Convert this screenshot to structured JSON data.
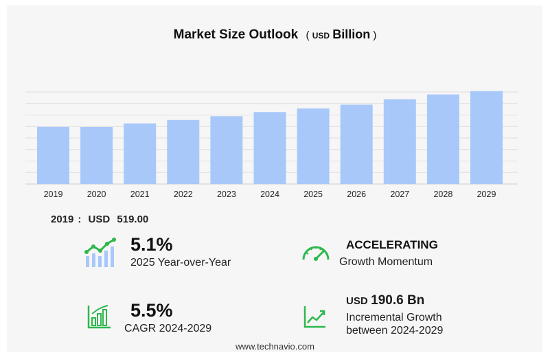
{
  "header": {
    "title": "Market Size Outlook",
    "unit_prefix": "USD",
    "unit_main": "Billion",
    "open_paren": "(",
    "close_paren": ")"
  },
  "chart_data": {
    "type": "bar",
    "categories": [
      "2019",
      "2020",
      "2021",
      "2022",
      "2023",
      "2024",
      "2025",
      "2026",
      "2027",
      "2028",
      "2029"
    ],
    "values": [
      519.0,
      518.0,
      551.0,
      582.0,
      616.0,
      654.0,
      687.0,
      721.0,
      771.0,
      814.0,
      844.6
    ],
    "ylim": [
      0,
      880
    ],
    "grid": true,
    "bar_color": "#a8c8fa"
  },
  "base_value": {
    "year": "2019",
    "separator": ":",
    "currency": "USD",
    "value": "519.00"
  },
  "stats": {
    "yoy": {
      "value": "5.1%",
      "label": "2025 Year-over-Year"
    },
    "momentum": {
      "value": "ACCELERATING",
      "label": "Growth Momentum"
    },
    "cagr": {
      "value": "5.5%",
      "label": "CAGR 2024-2029"
    },
    "incremental": {
      "currency": "USD",
      "value": "190.6 Bn",
      "label_line1": "Incremental Growth",
      "label_line2": "between 2024-2029"
    }
  },
  "icons": {
    "yoy": "bar-trend-icon",
    "momentum": "speedometer-icon",
    "cagr": "bar-chart-icon",
    "incremental": "line-chart-icon",
    "accent": "#2db84c"
  },
  "footer": {
    "source": "www.technavio.com"
  }
}
